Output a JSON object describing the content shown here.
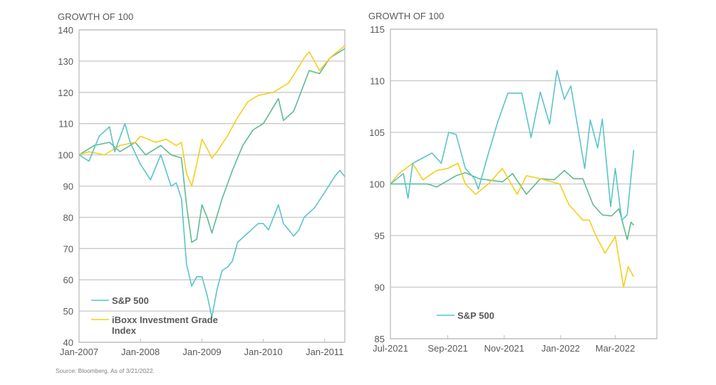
{
  "colors": {
    "sp500": "#5bc4c8",
    "iboxx": "#f5cf1c",
    "third": "#5dbb92",
    "grid": "#c8c8c8",
    "text": "#595959"
  },
  "source": "Source: Bloomberg. As of 3/21/2022.",
  "chart_data": [
    {
      "type": "line",
      "title": "GROWTH OF 100",
      "ylim": [
        40,
        140
      ],
      "yticks": [
        "140",
        "130",
        "120",
        "110",
        "100",
        "90",
        "80",
        "70",
        "60",
        "50",
        "40"
      ],
      "xlim": [
        "2007-01",
        "2011-05"
      ],
      "xticks": [
        "Jan-2007",
        "Jan-2008",
        "Jan-2009",
        "Jan-2010",
        "Jan-2011"
      ],
      "grid": true,
      "legend": "bottom-left",
      "series": [
        {
          "name": "S&P 500",
          "color_key": "sp500",
          "points": [
            [
              "2007-01",
              100
            ],
            [
              "2007-03",
              98
            ],
            [
              "2007-05",
              106
            ],
            [
              "2007-07",
              109
            ],
            [
              "2007-08",
              101
            ],
            [
              "2007-10",
              110
            ],
            [
              "2007-11",
              104
            ],
            [
              "2008-01",
              97
            ],
            [
              "2008-03",
              92
            ],
            [
              "2008-05",
              100
            ],
            [
              "2008-07",
              90
            ],
            [
              "2008-08",
              91
            ],
            [
              "2008-09",
              86
            ],
            [
              "2008-10",
              65
            ],
            [
              "2008-11",
              58
            ],
            [
              "2008-12",
              61
            ],
            [
              "2009-01",
              61
            ],
            [
              "2009-02",
              55
            ],
            [
              "2009-03",
              48
            ],
            [
              "2009-04",
              57
            ],
            [
              "2009-05",
              63
            ],
            [
              "2009-06",
              64
            ],
            [
              "2009-07",
              66
            ],
            [
              "2009-08",
              72
            ],
            [
              "2009-10",
              75
            ],
            [
              "2009-12",
              78
            ],
            [
              "2010-01",
              78
            ],
            [
              "2010-02",
              76
            ],
            [
              "2010-04",
              84
            ],
            [
              "2010-05",
              78
            ],
            [
              "2010-07",
              74
            ],
            [
              "2010-08",
              76
            ],
            [
              "2010-09",
              80
            ],
            [
              "2010-11",
              83
            ],
            [
              "2011-01",
              88
            ],
            [
              "2011-03",
              93
            ],
            [
              "2011-04",
              95
            ],
            [
              "2011-05",
              93
            ]
          ]
        },
        {
          "name": "iBoxx Investment Grade Index",
          "name_lines": [
            "iBoxx Investment Grade",
            "Index"
          ],
          "color_key": "iboxx",
          "points": [
            [
              "2007-01",
              100
            ],
            [
              "2007-03",
              101
            ],
            [
              "2007-06",
              100
            ],
            [
              "2007-09",
              103
            ],
            [
              "2007-12",
              104
            ],
            [
              "2008-01",
              106
            ],
            [
              "2008-04",
              104
            ],
            [
              "2008-06",
              105
            ],
            [
              "2008-08",
              103
            ],
            [
              "2008-09",
              104
            ],
            [
              "2008-10",
              94
            ],
            [
              "2008-11",
              90
            ],
            [
              "2008-12",
              97
            ],
            [
              "2009-01",
              105
            ],
            [
              "2009-02",
              102
            ],
            [
              "2009-03",
              99
            ],
            [
              "2009-04",
              101
            ],
            [
              "2009-06",
              106
            ],
            [
              "2009-08",
              112
            ],
            [
              "2009-10",
              117
            ],
            [
              "2009-12",
              119
            ],
            [
              "2010-03",
              120
            ],
            [
              "2010-06",
              123
            ],
            [
              "2010-09",
              131
            ],
            [
              "2010-10",
              133
            ],
            [
              "2010-12",
              127
            ],
            [
              "2011-02",
              131
            ],
            [
              "2011-05",
              135
            ]
          ]
        },
        {
          "color_key": "third",
          "points": [
            [
              "2007-01",
              100
            ],
            [
              "2007-04",
              103
            ],
            [
              "2007-07",
              104
            ],
            [
              "2007-09",
              101
            ],
            [
              "2007-12",
              104
            ],
            [
              "2008-02",
              100
            ],
            [
              "2008-05",
              103
            ],
            [
              "2008-07",
              100
            ],
            [
              "2008-09",
              99
            ],
            [
              "2008-10",
              84
            ],
            [
              "2008-11",
              72
            ],
            [
              "2008-12",
              73
            ],
            [
              "2009-01",
              84
            ],
            [
              "2009-02",
              80
            ],
            [
              "2009-03",
              75
            ],
            [
              "2009-05",
              86
            ],
            [
              "2009-07",
              95
            ],
            [
              "2009-09",
              103
            ],
            [
              "2009-11",
              108
            ],
            [
              "2010-01",
              110
            ],
            [
              "2010-04",
              118
            ],
            [
              "2010-05",
              111
            ],
            [
              "2010-07",
              114
            ],
            [
              "2010-10",
              127
            ],
            [
              "2010-12",
              126
            ],
            [
              "2011-02",
              131
            ],
            [
              "2011-05",
              134
            ]
          ]
        }
      ]
    },
    {
      "type": "line",
      "title": "GROWTH OF 100",
      "ylim": [
        85,
        115
      ],
      "yticks": [
        "115",
        "110",
        "105",
        "100",
        "95",
        "90",
        "85"
      ],
      "xlim": [
        "2021-07-01",
        "2022-04-15"
      ],
      "xticks": [
        "Jul-2021",
        "Sep-2021",
        "Nov-2021",
        "Jan-2022",
        "Mar-2022"
      ],
      "grid": true,
      "legend": "bottom-left",
      "series": [
        {
          "name": "S&P 500",
          "color_key": "sp500",
          "points": [
            [
              "2021-07-01",
              100
            ],
            [
              "2021-07-15",
              101
            ],
            [
              "2021-07-20",
              98.6
            ],
            [
              "2021-07-25",
              102
            ],
            [
              "2021-08-15",
              103
            ],
            [
              "2021-08-25",
              102
            ],
            [
              "2021-09-02",
              105
            ],
            [
              "2021-09-10",
              104.8
            ],
            [
              "2021-09-20",
              101.5
            ],
            [
              "2021-09-30",
              100.5
            ],
            [
              "2021-10-04",
              99.5
            ],
            [
              "2021-10-15",
              103
            ],
            [
              "2021-10-25",
              106
            ],
            [
              "2021-11-05",
              108.8
            ],
            [
              "2021-11-20",
              108.8
            ],
            [
              "2021-11-30",
              104.5
            ],
            [
              "2021-12-10",
              108.9
            ],
            [
              "2021-12-20",
              105.8
            ],
            [
              "2021-12-28",
              111
            ],
            [
              "2022-01-05",
              108.2
            ],
            [
              "2022-01-12",
              109.5
            ],
            [
              "2022-01-27",
              101.5
            ],
            [
              "2022-02-02",
              106.2
            ],
            [
              "2022-02-10",
              103.5
            ],
            [
              "2022-02-15",
              106.3
            ],
            [
              "2022-02-24",
              97.8
            ],
            [
              "2022-03-01",
              101.5
            ],
            [
              "2022-03-08",
              96.5
            ],
            [
              "2022-03-14",
              97
            ],
            [
              "2022-03-21",
              103.3
            ]
          ]
        },
        {
          "color_key": "iboxx",
          "points": [
            [
              "2021-07-01",
              100
            ],
            [
              "2021-07-10",
              101
            ],
            [
              "2021-07-25",
              102
            ],
            [
              "2021-08-05",
              100.4
            ],
            [
              "2021-08-20",
              101.3
            ],
            [
              "2021-09-01",
              101.5
            ],
            [
              "2021-09-12",
              102
            ],
            [
              "2021-09-20",
              100
            ],
            [
              "2021-10-01",
              99
            ],
            [
              "2021-10-15",
              100
            ],
            [
              "2021-10-30",
              101.5
            ],
            [
              "2021-11-15",
              99
            ],
            [
              "2021-11-25",
              100.8
            ],
            [
              "2021-12-10",
              100.5
            ],
            [
              "2021-12-31",
              100
            ],
            [
              "2022-01-10",
              98
            ],
            [
              "2022-01-25",
              96.5
            ],
            [
              "2022-02-01",
              96.5
            ],
            [
              "2022-02-08",
              95
            ],
            [
              "2022-02-18",
              93.3
            ],
            [
              "2022-03-01",
              94.9
            ],
            [
              "2022-03-10",
              90
            ],
            [
              "2022-03-15",
              92
            ],
            [
              "2022-03-21",
              91
            ]
          ]
        },
        {
          "color_key": "third",
          "points": [
            [
              "2021-07-01",
              100
            ],
            [
              "2021-08-10",
              100
            ],
            [
              "2021-08-20",
              99.7
            ],
            [
              "2021-09-10",
              100.8
            ],
            [
              "2021-09-20",
              101.1
            ],
            [
              "2021-10-05",
              100.5
            ],
            [
              "2021-10-30",
              100.2
            ],
            [
              "2021-11-10",
              101
            ],
            [
              "2021-11-25",
              99
            ],
            [
              "2021-12-10",
              100.5
            ],
            [
              "2021-12-25",
              100.4
            ],
            [
              "2022-01-05",
              101.3
            ],
            [
              "2022-01-15",
              100.5
            ],
            [
              "2022-01-25",
              100.5
            ],
            [
              "2022-02-05",
              98
            ],
            [
              "2022-02-15",
              97
            ],
            [
              "2022-02-25",
              96.9
            ],
            [
              "2022-03-05",
              97.6
            ],
            [
              "2022-03-14",
              94.6
            ],
            [
              "2022-03-18",
              96.3
            ],
            [
              "2022-03-21",
              96
            ]
          ]
        }
      ]
    }
  ]
}
